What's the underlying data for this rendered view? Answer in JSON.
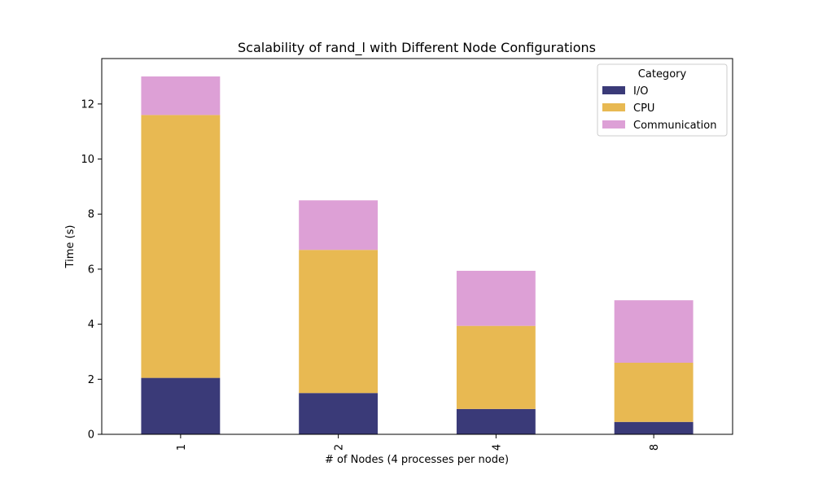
{
  "chart_data": {
    "type": "bar",
    "stacked": true,
    "title": "Scalability of rand_l with Different Node Configurations",
    "xlabel": "# of Nodes (4 processes per node)",
    "ylabel": "Time (s)",
    "categories": [
      "1",
      "2",
      "4",
      "8"
    ],
    "ylim": [
      0,
      13.65
    ],
    "yticks": [
      0,
      2,
      4,
      6,
      8,
      10,
      12
    ],
    "series": [
      {
        "name": "I/O",
        "values": [
          2.05,
          1.5,
          0.92,
          0.45
        ],
        "color": "#3a3a78"
      },
      {
        "name": "CPU",
        "values": [
          9.55,
          5.2,
          3.02,
          2.15
        ],
        "color": "#e8b952"
      },
      {
        "name": "Communication",
        "values": [
          1.4,
          1.8,
          2.0,
          2.27
        ],
        "color": "#dda0d6"
      }
    ],
    "legend": {
      "title": "Category",
      "position": "top-right"
    }
  }
}
